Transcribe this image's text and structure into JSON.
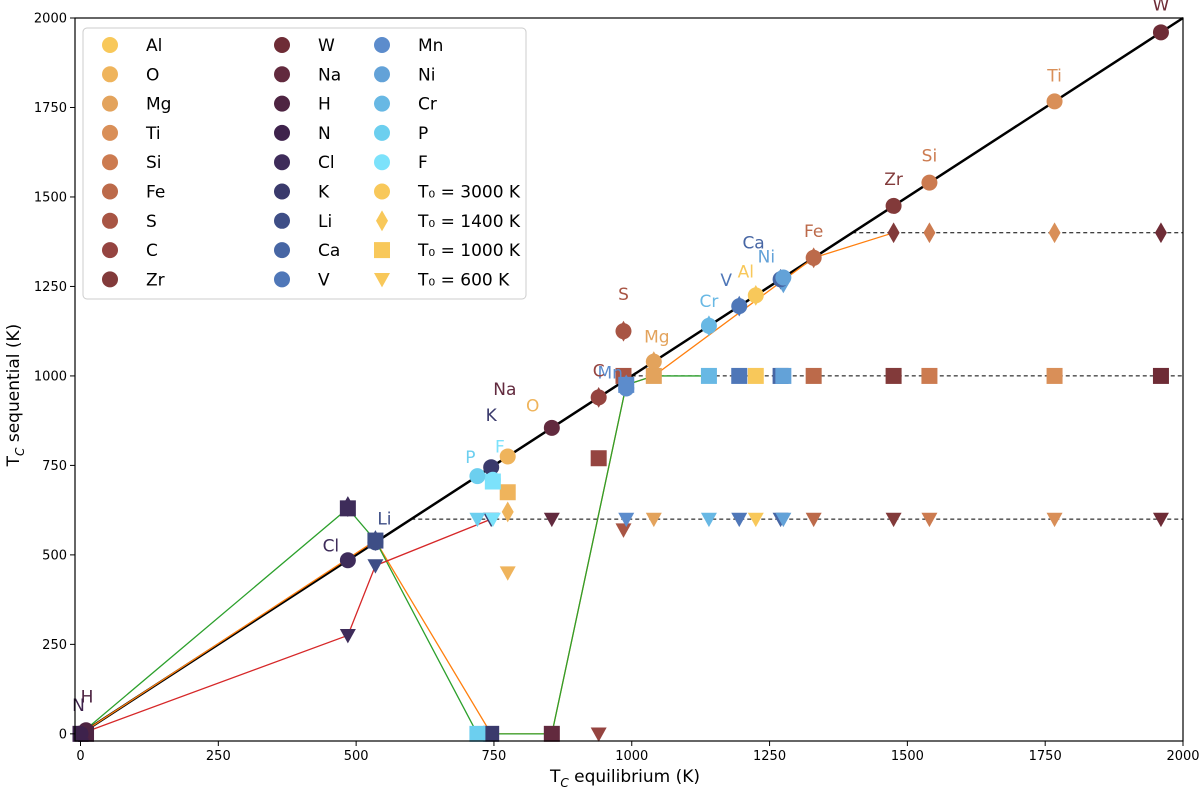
{
  "chart_data": {
    "type": "scatter",
    "title": "",
    "xlabel_main": "T",
    "xlabel_sub": "C",
    "xlabel_rest": " equilibrium (K)",
    "ylabel_main": "T",
    "ylabel_sub": "C",
    "ylabel_rest": " sequential (K)",
    "xlim": [
      -10,
      2000
    ],
    "ylim": [
      -20,
      2000
    ],
    "xticks": [
      0,
      250,
      500,
      750,
      1000,
      1250,
      1500,
      1750,
      2000
    ],
    "yticks": [
      0,
      250,
      500,
      750,
      1000,
      1250,
      1500,
      1750,
      2000
    ],
    "grid": false,
    "legend_position": "top-left",
    "elements": [
      {
        "name": "Al",
        "color": "#f8c85a",
        "teq": 1225
      },
      {
        "name": "O",
        "color": "#efb45c",
        "teq": 775
      },
      {
        "name": "Mg",
        "color": "#e3a35c",
        "teq": 1040
      },
      {
        "name": "Ti",
        "color": "#d98f58",
        "teq": 1767
      },
      {
        "name": "Si",
        "color": "#cc7b50",
        "teq": 1540
      },
      {
        "name": "Fe",
        "color": "#bc6a4a",
        "teq": 1330
      },
      {
        "name": "S",
        "color": "#a85544",
        "teq": 985
      },
      {
        "name": "C",
        "color": "#954440",
        "teq": 940
      },
      {
        "name": "Zr",
        "color": "#823a3a",
        "teq": 1475
      },
      {
        "name": "W",
        "color": "#6e2c36",
        "teq": 1960
      },
      {
        "name": "Na",
        "color": "#622a3e",
        "teq": 855
      },
      {
        "name": "H",
        "color": "#4e2442",
        "teq": 10
      },
      {
        "name": "N",
        "color": "#3e224c",
        "teq": 0
      },
      {
        "name": "Cl",
        "color": "#3e2c5a",
        "teq": 485
      },
      {
        "name": "K",
        "color": "#3a3a6c",
        "teq": 745
      },
      {
        "name": "Li",
        "color": "#3e4e86",
        "teq": 535
      },
      {
        "name": "Ca",
        "color": "#4766a4",
        "teq": 1270
      },
      {
        "name": "V",
        "color": "#4f77b8",
        "teq": 1195
      },
      {
        "name": "Mn",
        "color": "#5c8ccc",
        "teq": 990
      },
      {
        "name": "Ni",
        "color": "#63a2d8",
        "teq": 1275
      },
      {
        "name": "Cr",
        "color": "#68b8e4",
        "teq": 1140
      },
      {
        "name": "P",
        "color": "#6ccfef",
        "teq": 720
      },
      {
        "name": "F",
        "color": "#7ce2fb",
        "teq": 748
      }
    ],
    "legend_markers": [
      {
        "label": "T₀ = 3000 K",
        "marker": "circle"
      },
      {
        "label": "T₀ = 1400 K",
        "marker": "diamond"
      },
      {
        "label": "T₀ = 1000 K",
        "marker": "square"
      },
      {
        "label": "T₀ = 600 K",
        "marker": "triangle-down"
      }
    ],
    "reference_lines": [
      {
        "label": "T₀ = 1400 K plateau",
        "x_start": 1400,
        "y": 1400,
        "style": "dashed"
      },
      {
        "label": "T₀ = 1000 K plateau",
        "x_start": 1000,
        "y": 1000,
        "style": "dashed"
      },
      {
        "label": "T₀ = 600 K plateau",
        "x_start": 600,
        "y": 600,
        "style": "dashed"
      }
    ],
    "series": [
      {
        "name": "T₀ = 3000 K",
        "marker": "circle",
        "points": [
          {
            "el": "Al",
            "x": 1225,
            "y": 1225
          },
          {
            "el": "O",
            "x": 775,
            "y": 775
          },
          {
            "el": "Mg",
            "x": 1040,
            "y": 1040
          },
          {
            "el": "Ti",
            "x": 1767,
            "y": 1767
          },
          {
            "el": "Si",
            "x": 1540,
            "y": 1540
          },
          {
            "el": "Fe",
            "x": 1330,
            "y": 1330
          },
          {
            "el": "S",
            "x": 985,
            "y": 1125
          },
          {
            "el": "C",
            "x": 940,
            "y": 940
          },
          {
            "el": "Zr",
            "x": 1475,
            "y": 1475
          },
          {
            "el": "W",
            "x": 1960,
            "y": 1960
          },
          {
            "el": "Na",
            "x": 855,
            "y": 855
          },
          {
            "el": "H",
            "x": 10,
            "y": 10
          },
          {
            "el": "N",
            "x": 0,
            "y": 0
          },
          {
            "el": "Cl",
            "x": 485,
            "y": 485
          },
          {
            "el": "K",
            "x": 745,
            "y": 745
          },
          {
            "el": "Li",
            "x": 535,
            "y": 535
          },
          {
            "el": "Ca",
            "x": 1270,
            "y": 1270
          },
          {
            "el": "V",
            "x": 1195,
            "y": 1195
          },
          {
            "el": "Mn",
            "x": 990,
            "y": 965
          },
          {
            "el": "Ni",
            "x": 1275,
            "y": 1275
          },
          {
            "el": "Cr",
            "x": 1140,
            "y": 1140
          },
          {
            "el": "P",
            "x": 720,
            "y": 720
          },
          {
            "el": "F",
            "x": 748,
            "y": 710
          }
        ]
      },
      {
        "name": "T₀ = 1400 K",
        "marker": "diamond",
        "points": [
          {
            "el": "Al",
            "x": 1225,
            "y": 1225
          },
          {
            "el": "O",
            "x": 775,
            "y": 620
          },
          {
            "el": "Mg",
            "x": 1040,
            "y": 1040
          },
          {
            "el": "Ti",
            "x": 1767,
            "y": 1400
          },
          {
            "el": "Si",
            "x": 1540,
            "y": 1400
          },
          {
            "el": "Fe",
            "x": 1330,
            "y": 1330
          },
          {
            "el": "S",
            "x": 985,
            "y": 1125
          },
          {
            "el": "C",
            "x": 940,
            "y": 940
          },
          {
            "el": "Zr",
            "x": 1475,
            "y": 1400
          },
          {
            "el": "W",
            "x": 1960,
            "y": 1400
          },
          {
            "el": "Ca",
            "x": 1270,
            "y": 1270
          },
          {
            "el": "V",
            "x": 1195,
            "y": 1195
          },
          {
            "el": "Mn",
            "x": 990,
            "y": 975
          },
          {
            "el": "Ni",
            "x": 1275,
            "y": 1260
          },
          {
            "el": "Cr",
            "x": 1140,
            "y": 1140
          },
          {
            "el": "Cl",
            "x": 485,
            "y": 635
          },
          {
            "el": "Li",
            "x": 535,
            "y": 540
          }
        ]
      },
      {
        "name": "T₀ = 1000 K",
        "marker": "square",
        "points": [
          {
            "el": "Al",
            "x": 1225,
            "y": 1000
          },
          {
            "el": "O",
            "x": 775,
            "y": 675
          },
          {
            "el": "Mg",
            "x": 1040,
            "y": 1000
          },
          {
            "el": "Ti",
            "x": 1767,
            "y": 1000
          },
          {
            "el": "Si",
            "x": 1540,
            "y": 1000
          },
          {
            "el": "Fe",
            "x": 1330,
            "y": 1000
          },
          {
            "el": "S",
            "x": 985,
            "y": 1000
          },
          {
            "el": "C",
            "x": 940,
            "y": 770
          },
          {
            "el": "Zr",
            "x": 1475,
            "y": 1000
          },
          {
            "el": "W",
            "x": 1960,
            "y": 1000
          },
          {
            "el": "Na",
            "x": 855,
            "y": 0
          },
          {
            "el": "H",
            "x": 10,
            "y": 0
          },
          {
            "el": "N",
            "x": 0,
            "y": 0
          },
          {
            "el": "Cl",
            "x": 485,
            "y": 630
          },
          {
            "el": "K",
            "x": 745,
            "y": 0
          },
          {
            "el": "Li",
            "x": 535,
            "y": 540
          },
          {
            "el": "Ca",
            "x": 1270,
            "y": 1000
          },
          {
            "el": "V",
            "x": 1195,
            "y": 1000
          },
          {
            "el": "Mn",
            "x": 990,
            "y": 975
          },
          {
            "el": "Ni",
            "x": 1275,
            "y": 1000
          },
          {
            "el": "Cr",
            "x": 1140,
            "y": 1000
          },
          {
            "el": "P",
            "x": 720,
            "y": 0
          },
          {
            "el": "F",
            "x": 748,
            "y": 705
          }
        ]
      },
      {
        "name": "T₀ = 600 K",
        "marker": "triangle-down",
        "points": [
          {
            "el": "Al",
            "x": 1225,
            "y": 600
          },
          {
            "el": "O",
            "x": 775,
            "y": 450
          },
          {
            "el": "Mg",
            "x": 1040,
            "y": 600
          },
          {
            "el": "Ti",
            "x": 1767,
            "y": 600
          },
          {
            "el": "Si",
            "x": 1540,
            "y": 600
          },
          {
            "el": "Fe",
            "x": 1330,
            "y": 600
          },
          {
            "el": "S",
            "x": 985,
            "y": 570
          },
          {
            "el": "C",
            "x": 940,
            "y": 0
          },
          {
            "el": "Zr",
            "x": 1475,
            "y": 600
          },
          {
            "el": "W",
            "x": 1960,
            "y": 600
          },
          {
            "el": "Na",
            "x": 855,
            "y": 600
          },
          {
            "el": "H",
            "x": 10,
            "y": 0
          },
          {
            "el": "N",
            "x": 0,
            "y": 0
          },
          {
            "el": "Cl",
            "x": 485,
            "y": 275
          },
          {
            "el": "K",
            "x": 745,
            "y": 600
          },
          {
            "el": "Li",
            "x": 535,
            "y": 470
          },
          {
            "el": "Ca",
            "x": 1270,
            "y": 600
          },
          {
            "el": "V",
            "x": 1195,
            "y": 600
          },
          {
            "el": "Mn",
            "x": 990,
            "y": 600
          },
          {
            "el": "Ni",
            "x": 1275,
            "y": 600
          },
          {
            "el": "Cr",
            "x": 1140,
            "y": 600
          },
          {
            "el": "P",
            "x": 720,
            "y": 600
          },
          {
            "el": "F",
            "x": 748,
            "y": 600
          }
        ]
      }
    ],
    "connecting_lines": [
      {
        "name": "T₀ = 1400 K path",
        "color": "#ff7f0e",
        "points": [
          [
            0,
            0
          ],
          [
            535,
            540
          ],
          [
            745,
            0
          ],
          [
            855,
            0
          ],
          [
            990,
            975
          ],
          [
            1040,
            1000
          ],
          [
            1330,
            1330
          ],
          [
            1475,
            1400
          ]
        ]
      },
      {
        "name": "T₀ = 1000 K path",
        "color": "#2ca02c",
        "points": [
          [
            0,
            0
          ],
          [
            485,
            630
          ],
          [
            535,
            540
          ],
          [
            720,
            0
          ],
          [
            745,
            0
          ],
          [
            775,
            0
          ],
          [
            855,
            0
          ],
          [
            990,
            975
          ],
          [
            1040,
            1000
          ],
          [
            1140,
            1000
          ]
        ]
      },
      {
        "name": "T₀ = 600 K path",
        "color": "#d62728",
        "points": [
          [
            0,
            0
          ],
          [
            485,
            275
          ],
          [
            535,
            470
          ],
          [
            745,
            600
          ]
        ]
      }
    ],
    "annotations": [
      {
        "text": "W",
        "x": 1960,
        "y": 1960
      },
      {
        "text": "Ti",
        "x": 1767,
        "y": 1767
      },
      {
        "text": "Zr",
        "x": 1475,
        "y": 1475
      },
      {
        "text": "Si",
        "x": 1540,
        "y": 1540
      },
      {
        "text": "Fe",
        "x": 1330,
        "y": 1330
      },
      {
        "text": "Ca",
        "x": 1270,
        "y": 1270
      },
      {
        "text": "Ni",
        "x": 1275,
        "y": 1275
      },
      {
        "text": "Al",
        "x": 1225,
        "y": 1225
      },
      {
        "text": "V",
        "x": 1195,
        "y": 1195
      },
      {
        "text": "Cr",
        "x": 1140,
        "y": 1140
      },
      {
        "text": "S",
        "x": 985,
        "y": 1125
      },
      {
        "text": "Mg",
        "x": 1040,
        "y": 1040
      },
      {
        "text": "Mn",
        "x": 990,
        "y": 965
      },
      {
        "text": "C",
        "x": 940,
        "y": 940
      },
      {
        "text": "Na",
        "x": 855,
        "y": 855
      },
      {
        "text": "O",
        "x": 775,
        "y": 775
      },
      {
        "text": "K",
        "x": 745,
        "y": 745
      },
      {
        "text": "F",
        "x": 748,
        "y": 710
      },
      {
        "text": "P",
        "x": 720,
        "y": 720
      },
      {
        "text": "Li",
        "x": 535,
        "y": 535
      },
      {
        "text": "Cl",
        "x": 485,
        "y": 485
      },
      {
        "text": "H",
        "x": 10,
        "y": 10
      },
      {
        "text": "N",
        "x": 0,
        "y": 0
      }
    ],
    "identity_line": {
      "label": "y = x",
      "color": "#000000"
    }
  }
}
